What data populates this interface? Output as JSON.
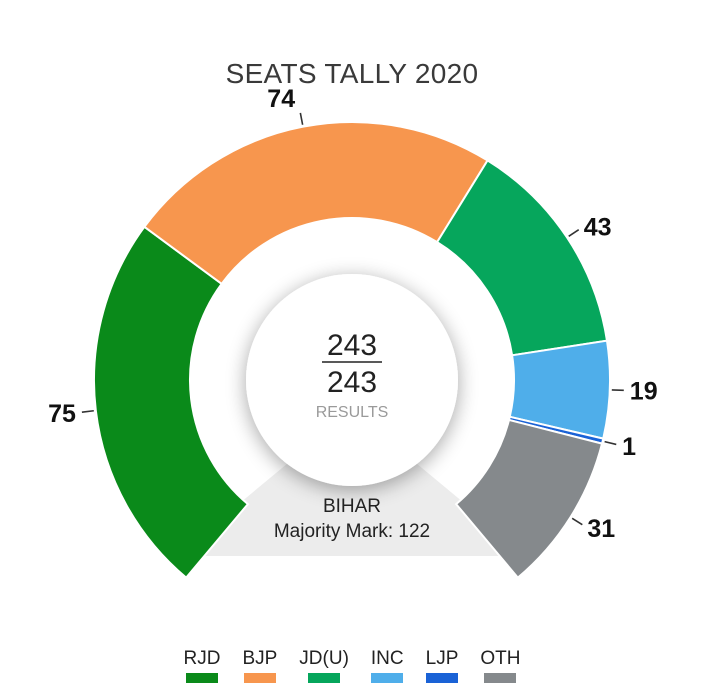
{
  "chart_data": {
    "type": "pie",
    "title": "SEATS TALLY 2020",
    "categories": [
      "RJD",
      "BJP",
      "JD(U)",
      "INC",
      "LJP",
      "OTH"
    ],
    "values": [
      75,
      74,
      43,
      19,
      1,
      31
    ],
    "colors": [
      "#0a8a1a",
      "#f7964e",
      "#06a65c",
      "#4faeea",
      "#1a62d6",
      "#85898c"
    ],
    "total_seats": 243,
    "center": {
      "numerator": "243",
      "denominator": "243",
      "caption": "RESULTS"
    },
    "state": "BIHAR",
    "majority_label": "Majority Mark: 122",
    "legend_position": "bottom"
  }
}
